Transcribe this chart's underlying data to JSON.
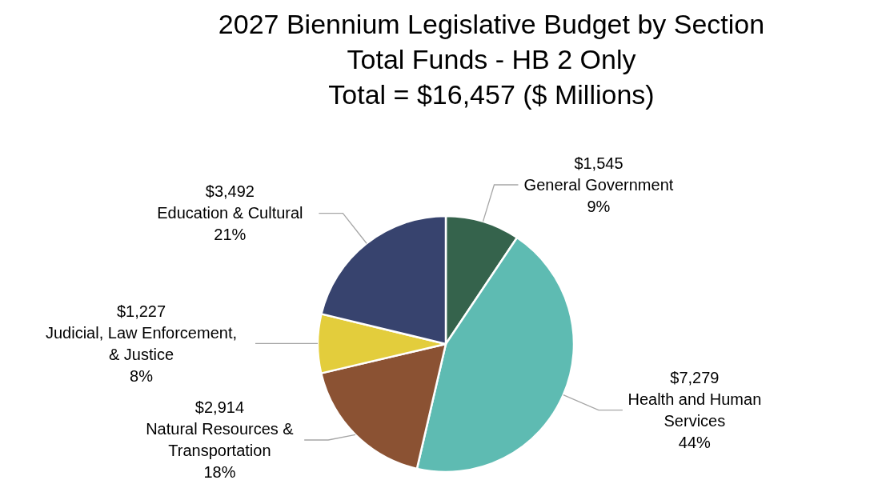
{
  "chart_data": {
    "type": "pie",
    "title": "2027 Biennium Legislative Budget by Section",
    "subtitle": "Total Funds - HB 2 Only\nTotal = $16,457 ($ Millions)",
    "categories": [
      "General Government",
      "Health and Human\nServices",
      "Natural Resources &\nTransportation",
      "Judicial, Law Enforcement,\n& Justice",
      "Education & Cultural"
    ],
    "values": [
      1545,
      7279,
      2914,
      1227,
      3492
    ],
    "colors": [
      "#35634c",
      "#5ebbb2",
      "#8b5233",
      "#e3cd3c",
      "#37436e"
    ],
    "value_labels": [
      "$1,545",
      "$7,279",
      "$2,914",
      "$1,227",
      "$3,492"
    ],
    "annotations": [
      "9%",
      "44%",
      "18%",
      "8%",
      "21%"
    ],
    "legend": false
  }
}
